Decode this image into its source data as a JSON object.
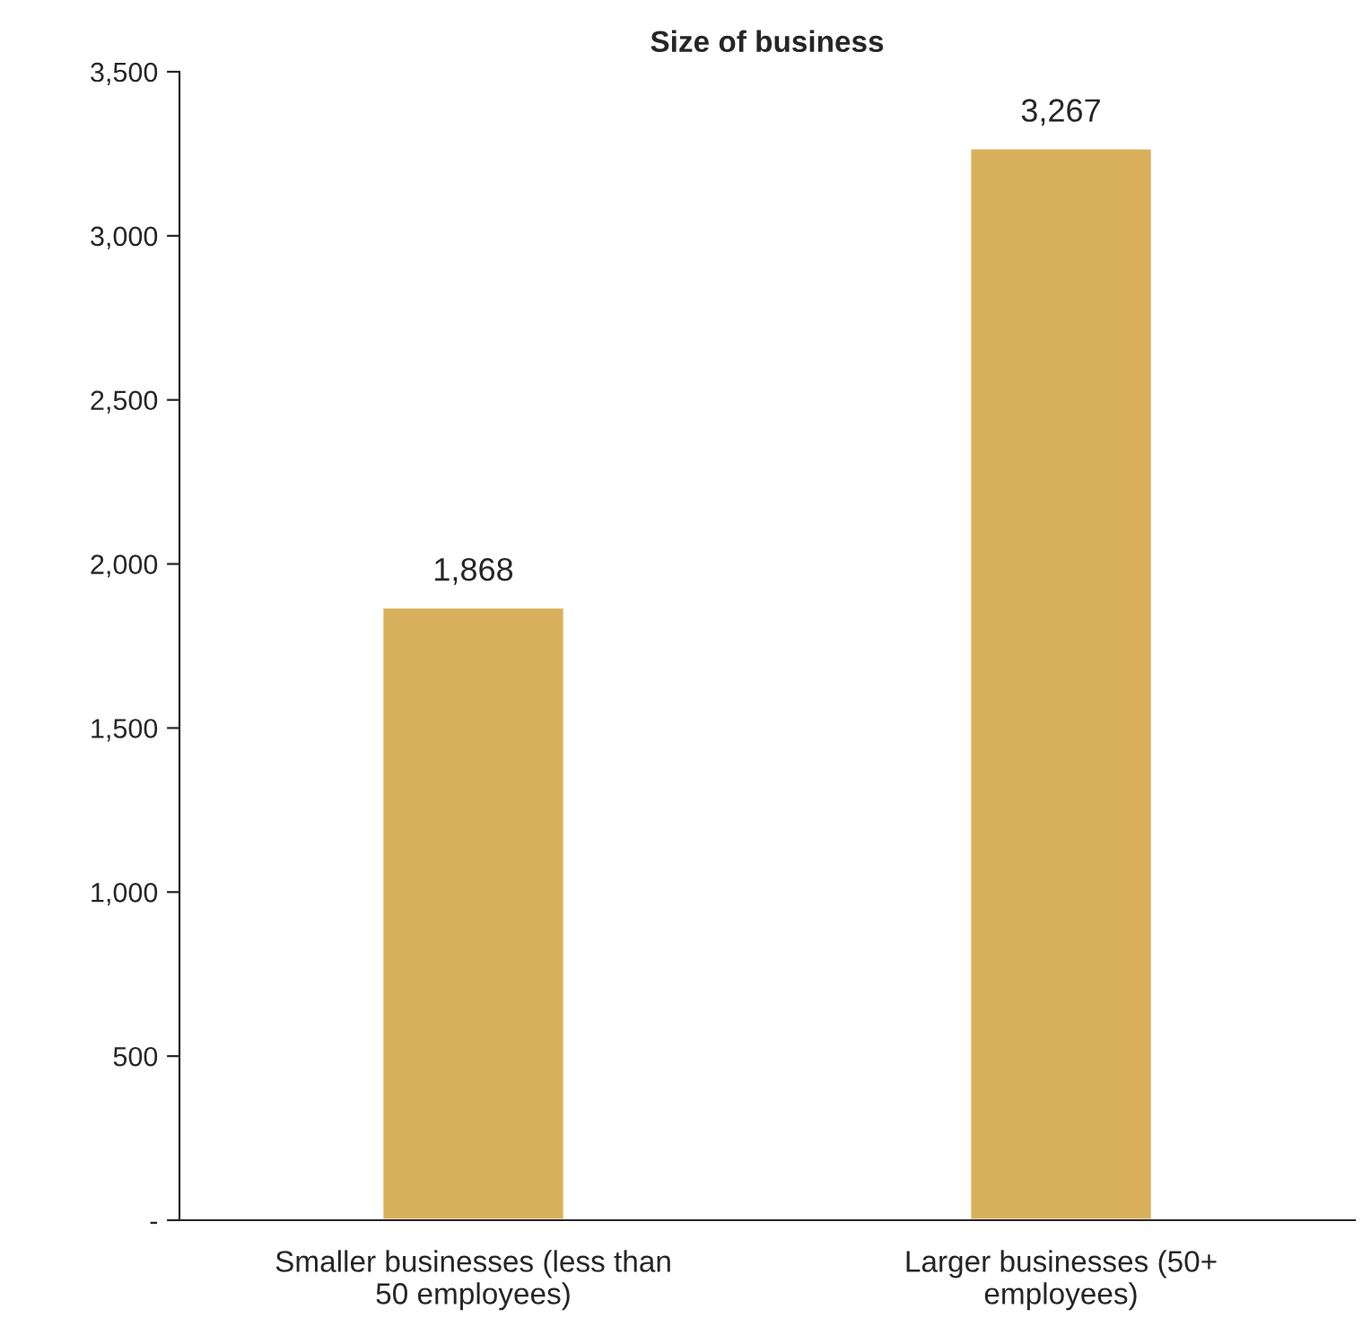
{
  "chart_data": {
    "type": "bar",
    "title": "Size of business",
    "categories": [
      "Smaller businesses (less than 50 employees)",
      "Larger businesses (50+ employees)"
    ],
    "values": [
      1868,
      3267
    ],
    "color": "#d9b05c",
    "value_labels": [
      "1,868",
      "3,267"
    ],
    "ylim": [
      0,
      3500
    ],
    "yticks": [
      {
        "value": 0,
        "label": "-"
      },
      {
        "value": 500,
        "label": "500"
      },
      {
        "value": 1000,
        "label": "1,000"
      },
      {
        "value": 1500,
        "label": "1,500"
      },
      {
        "value": 2000,
        "label": "2,000"
      },
      {
        "value": 2500,
        "label": "2,500"
      },
      {
        "value": 3000,
        "label": "3,000"
      },
      {
        "value": 3500,
        "label": "3,500"
      }
    ],
    "grid": false
  }
}
